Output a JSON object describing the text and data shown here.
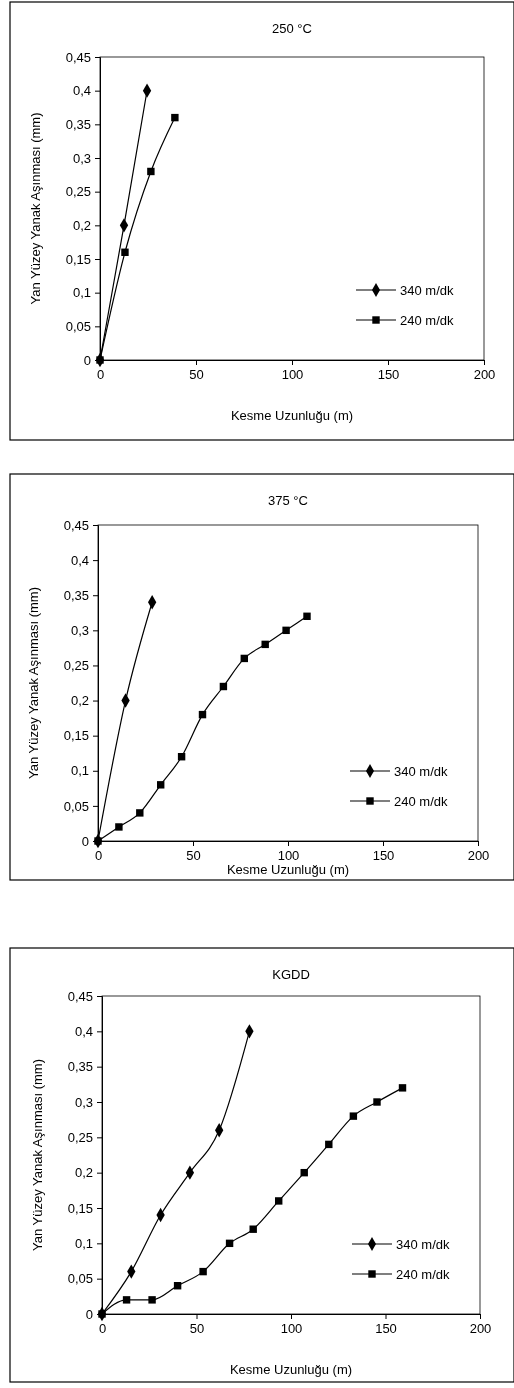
{
  "chart_data": [
    {
      "type": "line",
      "title": "250 °C",
      "xlabel": "Kesme Uzunluğu (m)",
      "ylabel": "Yan Yüzey Yanak Aşınması (mm)",
      "xlim": [
        0,
        200
      ],
      "xticks": [
        0,
        50,
        100,
        150,
        200
      ],
      "ylim": [
        0,
        0.45
      ],
      "yticks": [
        {
          "value": 0,
          "label": "0"
        },
        {
          "value": 0.05,
          "label": "0,05"
        },
        {
          "value": 0.1,
          "label": "0,1"
        },
        {
          "value": 0.15,
          "label": "0,15"
        },
        {
          "value": 0.2,
          "label": "0,2"
        },
        {
          "value": 0.25,
          "label": "0,25"
        },
        {
          "value": 0.3,
          "label": "0,3"
        },
        {
          "value": 0.35,
          "label": "0,35"
        },
        {
          "value": 0.4,
          "label": "0,4"
        },
        {
          "value": 0.45,
          "label": "0,45"
        }
      ],
      "grid": false,
      "legend": "bottom right",
      "line_style": "solid",
      "series": [
        {
          "name": "340 m/dk",
          "color": "#000000",
          "marker": "diamond",
          "x": [
            0,
            12.5,
            24.5
          ],
          "values": [
            0,
            0.2,
            0.4
          ]
        },
        {
          "name": "240 m/dk",
          "color": "#000000",
          "marker": "square",
          "x": [
            0,
            13,
            26.5,
            39
          ],
          "values": [
            0,
            0.16,
            0.28,
            0.36
          ]
        }
      ]
    },
    {
      "type": "line",
      "title": "375 °C",
      "xlabel": "Kesme Uzunluğu (m)",
      "ylabel": "Yan Yüzey Yanak Aşınması (mm)",
      "xlim": [
        0,
        200
      ],
      "xticks": [
        0,
        50,
        100,
        150,
        200
      ],
      "ylim": [
        0,
        0.45
      ],
      "yticks": [
        {
          "value": 0,
          "label": "0"
        },
        {
          "value": 0.05,
          "label": "0,05"
        },
        {
          "value": 0.1,
          "label": "0,1"
        },
        {
          "value": 0.15,
          "label": "0,15"
        },
        {
          "value": 0.2,
          "label": "0,2"
        },
        {
          "value": 0.25,
          "label": "0,25"
        },
        {
          "value": 0.3,
          "label": "0,3"
        },
        {
          "value": 0.35,
          "label": "0,35"
        },
        {
          "value": 0.4,
          "label": "0,4"
        },
        {
          "value": 0.45,
          "label": "0,45"
        }
      ],
      "grid": false,
      "legend": "bottom right",
      "line_style": "solid",
      "series": [
        {
          "name": "340 m/dk",
          "color": "#000000",
          "marker": "diamond",
          "x": [
            0,
            14.5,
            28.5
          ],
          "values": [
            0,
            0.2,
            0.34
          ]
        },
        {
          "name": "240 m/dk",
          "color": "#000000",
          "marker": "square",
          "x": [
            0,
            11,
            22,
            33,
            44,
            55,
            66,
            77,
            88,
            99,
            110
          ],
          "values": [
            0,
            0.02,
            0.04,
            0.08,
            0.12,
            0.18,
            0.22,
            0.26,
            0.28,
            0.3,
            0.32
          ]
        }
      ]
    },
    {
      "type": "line",
      "title": "KGDD",
      "xlabel": "Kesme Uzunluğu (m)",
      "ylabel": "Yan Yüzey Yanak Aşınması (mm)",
      "xlim": [
        0,
        200
      ],
      "xticks": [
        0,
        50,
        100,
        150,
        200
      ],
      "ylim": [
        0,
        0.45
      ],
      "yticks": [
        {
          "value": 0,
          "label": "0"
        },
        {
          "value": 0.05,
          "label": "0,05"
        },
        {
          "value": 0.1,
          "label": "0,1"
        },
        {
          "value": 0.15,
          "label": "0,15"
        },
        {
          "value": 0.2,
          "label": "0,2"
        },
        {
          "value": 0.25,
          "label": "0,25"
        },
        {
          "value": 0.3,
          "label": "0,3"
        },
        {
          "value": 0.35,
          "label": "0,35"
        },
        {
          "value": 0.4,
          "label": "0,4"
        },
        {
          "value": 0.45,
          "label": "0,45"
        }
      ],
      "grid": false,
      "legend": "bottom right",
      "line_style": "solid",
      "series": [
        {
          "name": "340 m/dk",
          "color": "#000000",
          "marker": "diamond",
          "x": [
            0,
            15.5,
            31,
            46.5,
            62,
            78
          ],
          "values": [
            0,
            0.06,
            0.14,
            0.2,
            0.26,
            0.4
          ]
        },
        {
          "name": "240 m/dk",
          "color": "#000000",
          "marker": "square",
          "x": [
            0,
            13,
            26.5,
            40,
            53.5,
            67.5,
            80,
            93.5,
            107,
            120,
            133,
            145.5,
            159
          ],
          "values": [
            0,
            0.02,
            0.02,
            0.04,
            0.06,
            0.1,
            0.12,
            0.16,
            0.2,
            0.24,
            0.28,
            0.3,
            0.32
          ]
        }
      ]
    }
  ]
}
